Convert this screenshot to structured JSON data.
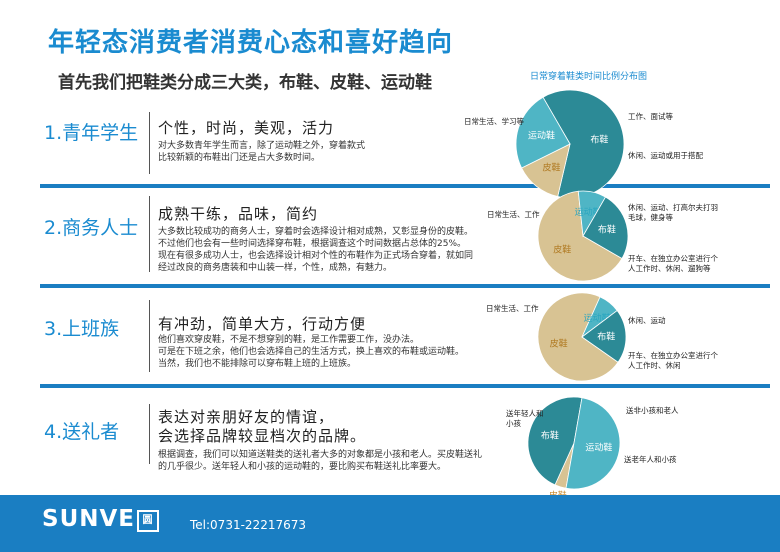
{
  "title": "年轻态消费者消费心态和喜好趋向",
  "subtitle": "首先我们把鞋类分成三大类，布鞋、皮鞋、运动鞋",
  "chart_caption": "日常穿着鞋类时间比例分布图",
  "sections": [
    {
      "label": "1.青年学生",
      "heading": "个性，时尚，美观，活力",
      "lines": [
        "对大多数青年学生而言，除了运动鞋之外，穿着款式",
        "比较新颖的布鞋出门还是占大多数时间。"
      ]
    },
    {
      "label": "2.商务人士",
      "heading": "成熟干练，品味，简约",
      "lines": [
        "大多数比较成功的商务人士，穿着时会选择设计相对成熟，又彰显身份的皮鞋。",
        "不过他们也会有一些时间选择穿布鞋，根据调查这个时间数据占总体的25%。",
        "现在有很多成功人士，也会选择设计相对个性的布鞋作为正式场合穿着，就如同",
        "经过改良的商务唐装和中山装一样，个性，成熟，有魅力。"
      ]
    },
    {
      "label": "3.上班族",
      "heading": "有冲劲，简单大方，行动方便",
      "lines": [
        "他们喜欢穿皮鞋，不是不想穿别的鞋，是工作需要工作，没办法。",
        "可是在下班之余，他们也会选择自己的生活方式，换上喜欢的布鞋或运动鞋。",
        "当然，我们也不能排除可以穿布鞋上班的上班族。"
      ]
    },
    {
      "label": "4.送礼者",
      "heading_lines": [
        "表达对亲朋好友的情谊，",
        "会选择品牌较显档次的品牌。"
      ],
      "lines": [
        "根据调查，我们可以知道送鞋类的送礼者大多的对象都是小孩和老人。买皮鞋送礼",
        "的几乎很少。送年轻人和小孩的运动鞋的，要比购买布鞋送礼比率要大。"
      ]
    }
  ],
  "chart_data": [
    {
      "type": "pie",
      "title": "日常穿着鞋类时间比例分布图",
      "slices": [
        {
          "name": "布鞋",
          "value": 62,
          "color": "#2c8a96",
          "annotation": "日常生活、学习等"
        },
        {
          "name": "皮鞋",
          "value": 14,
          "color": "#d8c393",
          "annotation": "工作、面试等"
        },
        {
          "name": "运动鞋",
          "value": 24,
          "color": "#4fb5c5",
          "annotation": "休闲、运动或用于搭配"
        }
      ]
    },
    {
      "type": "pie",
      "slices": [
        {
          "name": "皮鞋",
          "value": 65,
          "color": "#d8c393",
          "annotation": "日常生活、工作"
        },
        {
          "name": "运动鞋",
          "value": 10,
          "color": "#4fb5c5",
          "annotation": "休闲、运动、打高尔夫打羽毛球，健身等"
        },
        {
          "name": "布鞋",
          "value": 25,
          "color": "#2c8a96",
          "annotation": "开车、在独立办公室进行个人工作时、休闲、遛狗等"
        }
      ]
    },
    {
      "type": "pie",
      "slices": [
        {
          "name": "皮鞋",
          "value": 72,
          "color": "#d8c393",
          "annotation": "日常生活、工作"
        },
        {
          "name": "运动鞋",
          "value": 8,
          "color": "#4fb5c5",
          "annotation": "休闲、运动"
        },
        {
          "name": "布鞋",
          "value": 20,
          "color": "#2c8a96",
          "annotation": "开车、在独立办公室进行个人工作时、休闲"
        }
      ]
    },
    {
      "type": "pie",
      "slices": [
        {
          "name": "皮鞋",
          "value": 4,
          "color": "#d8c393",
          "annotation": "送非小孩和老人"
        },
        {
          "name": "布鞋",
          "value": 46,
          "color": "#2c8a96",
          "annotation": "送老年人和小孩"
        },
        {
          "name": "运动鞋",
          "value": 50,
          "color": "#4fb5c5",
          "annotation": "送年轻人和小孩"
        }
      ]
    }
  ],
  "footer": {
    "logo_text": "SUNVE",
    "logo_box_char": "圆",
    "tel": "Tel:0731-22217673"
  }
}
